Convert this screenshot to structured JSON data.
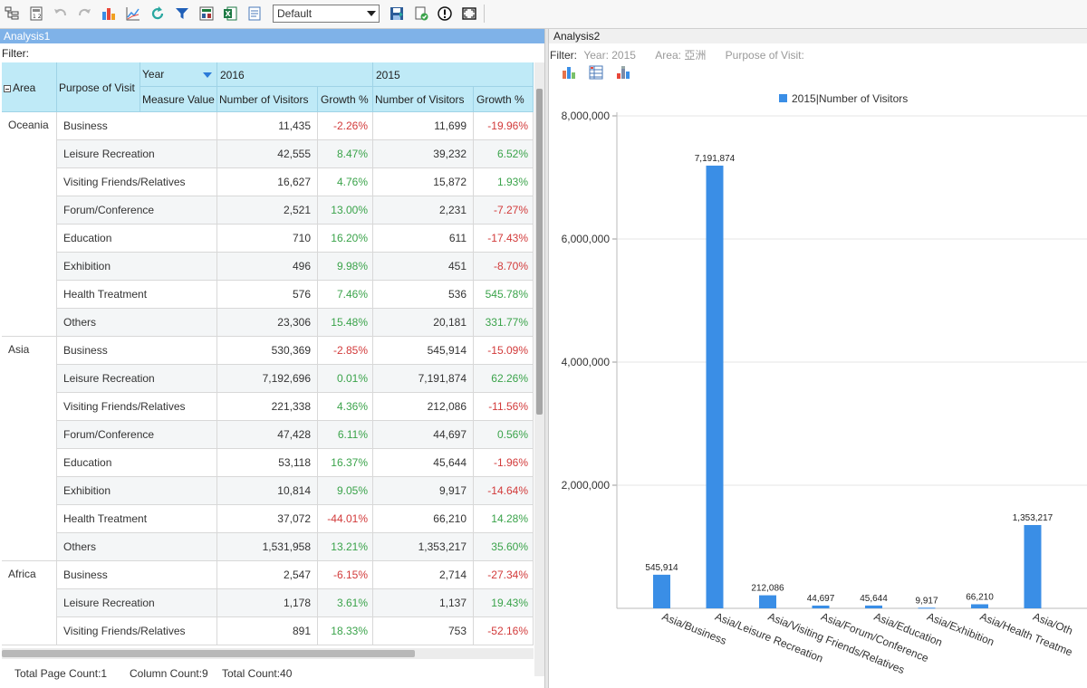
{
  "toolbar": {
    "icons": [
      "tree-icon",
      "calculator-icon",
      "undo-icon",
      "redo-icon",
      "bar-chart-icon",
      "line-chart-icon",
      "refresh-icon",
      "filter-icon",
      "export-icon",
      "excel-icon",
      "report-icon"
    ],
    "layout_select": "Default",
    "right_icons": [
      "save-icon",
      "check-icon",
      "alert-icon",
      "fullscreen-icon"
    ]
  },
  "left": {
    "title": "Analysis1",
    "filter": "Filter:",
    "header": {
      "area": "Area",
      "purpose": "Purpose of Visit",
      "year": "Year",
      "measure": "Measure Value",
      "y2016": "2016",
      "y2015": "2015",
      "visitors": "Number of Visitors",
      "growth": "Growth %"
    },
    "groups": [
      {
        "area": "Oceania",
        "rows": [
          {
            "purpose": "Business",
            "v16": "11,435",
            "g16": "-2.26%",
            "v15": "11,699",
            "g15": "-19.96%"
          },
          {
            "purpose": "Leisure Recreation",
            "v16": "42,555",
            "g16": "8.47%",
            "v15": "39,232",
            "g15": "6.52%"
          },
          {
            "purpose": "Visiting Friends/Relatives",
            "v16": "16,627",
            "g16": "4.76%",
            "v15": "15,872",
            "g15": "1.93%"
          },
          {
            "purpose": "Forum/Conference",
            "v16": "2,521",
            "g16": "13.00%",
            "v15": "2,231",
            "g15": "-7.27%"
          },
          {
            "purpose": "Education",
            "v16": "710",
            "g16": "16.20%",
            "v15": "611",
            "g15": "-17.43%"
          },
          {
            "purpose": "Exhibition",
            "v16": "496",
            "g16": "9.98%",
            "v15": "451",
            "g15": "-8.70%"
          },
          {
            "purpose": "Health Treatment",
            "v16": "576",
            "g16": "7.46%",
            "v15": "536",
            "g15": "545.78%"
          },
          {
            "purpose": "Others",
            "v16": "23,306",
            "g16": "15.48%",
            "v15": "20,181",
            "g15": "331.77%"
          }
        ]
      },
      {
        "area": "Asia",
        "rows": [
          {
            "purpose": "Business",
            "v16": "530,369",
            "g16": "-2.85%",
            "v15": "545,914",
            "g15": "-15.09%"
          },
          {
            "purpose": "Leisure Recreation",
            "v16": "7,192,696",
            "g16": "0.01%",
            "v15": "7,191,874",
            "g15": "62.26%"
          },
          {
            "purpose": "Visiting Friends/Relatives",
            "v16": "221,338",
            "g16": "4.36%",
            "v15": "212,086",
            "g15": "-11.56%"
          },
          {
            "purpose": "Forum/Conference",
            "v16": "47,428",
            "g16": "6.11%",
            "v15": "44,697",
            "g15": "0.56%"
          },
          {
            "purpose": "Education",
            "v16": "53,118",
            "g16": "16.37%",
            "v15": "45,644",
            "g15": "-1.96%"
          },
          {
            "purpose": "Exhibition",
            "v16": "10,814",
            "g16": "9.05%",
            "v15": "9,917",
            "g15": "-14.64%"
          },
          {
            "purpose": "Health Treatment",
            "v16": "37,072",
            "g16": "-44.01%",
            "v15": "66,210",
            "g15": "14.28%"
          },
          {
            "purpose": "Others",
            "v16": "1,531,958",
            "g16": "13.21%",
            "v15": "1,353,217",
            "g15": "35.60%"
          }
        ]
      },
      {
        "area": "Africa",
        "rows": [
          {
            "purpose": "Business",
            "v16": "2,547",
            "g16": "-6.15%",
            "v15": "2,714",
            "g15": "-27.34%"
          },
          {
            "purpose": "Leisure Recreation",
            "v16": "1,178",
            "g16": "3.61%",
            "v15": "1,137",
            "g15": "19.43%"
          },
          {
            "purpose": "Visiting Friends/Relatives",
            "v16": "891",
            "g16": "18.33%",
            "v15": "753",
            "g15": "-52.16%"
          }
        ]
      }
    ],
    "footer": {
      "page_count": "Total Page Count:1",
      "column_count": "Column Count:9",
      "total_count": "Total Count:40"
    }
  },
  "right": {
    "title": "Analysis2",
    "filter_label": "Filter:",
    "filter_year": "Year: 2015",
    "filter_area": "Area: 亞洲",
    "filter_purpose": "Purpose of Visit:",
    "chart_icons": [
      "column-chart-icon",
      "table-icon",
      "stacked-chart-icon"
    ]
  },
  "chart_data": {
    "type": "bar",
    "series": [
      {
        "name": "2015|Number of Visitors",
        "values": [
          545914,
          7191874,
          212086,
          44697,
          45644,
          9917,
          66210,
          1353217
        ]
      }
    ],
    "categories": [
      "Asia/Business",
      "Asia/Leisure Recreation",
      "Asia/Visiting Friends/Relatives",
      "Asia/Forum/Conference",
      "Asia/Education",
      "Asia/Exhibition",
      "Asia/Health Treatme",
      "Asia/Oth"
    ],
    "value_labels": [
      "545,914",
      "7,191,874",
      "212,086",
      "44,697",
      "45,644",
      "9,917",
      "66,210",
      "1,353,217"
    ],
    "yticks": [
      "2,000,000",
      "4,000,000",
      "6,000,000",
      "8,000,000"
    ],
    "ylim": [
      0,
      8000000
    ],
    "legend_position": "top",
    "color": "#3a8ee6"
  }
}
